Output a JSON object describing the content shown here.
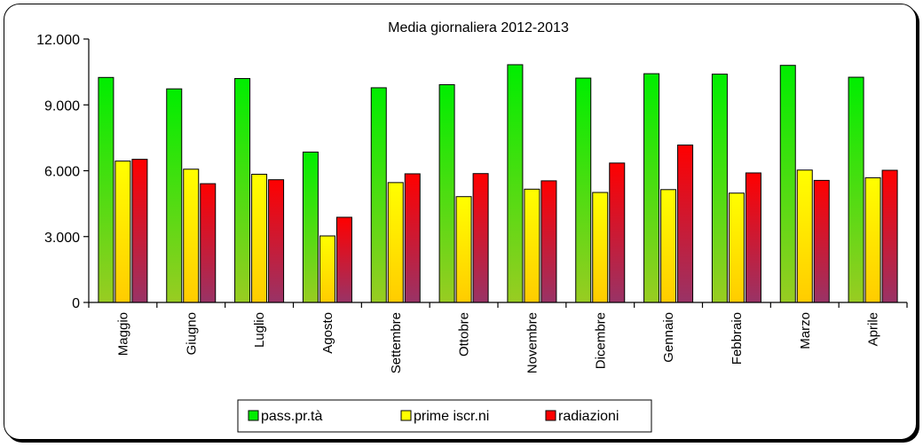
{
  "chart_data": {
    "type": "bar",
    "title": "Media giornaliera 2012-2013",
    "xlabel": "",
    "ylabel": "",
    "ylim": [
      0,
      12000
    ],
    "yticks": [
      "0",
      "3.000",
      "6.000",
      "9.000",
      "12.000"
    ],
    "ytick_values": [
      0,
      3000,
      6000,
      9000,
      12000
    ],
    "grid": false,
    "legend": "bottom-center",
    "categories": [
      "Maggio",
      "Giugno",
      "Luglio",
      "Agosto",
      "Settembre",
      "Ottobre",
      "Novembre",
      "Dicembre",
      "Gennaio",
      "Febbraio",
      "Marzo",
      "Aprile"
    ],
    "series": [
      {
        "name": "pass.pr.tà",
        "color_top": "#00ee00",
        "color_bottom": "#99cc22",
        "values": [
          10250,
          9730,
          10200,
          6850,
          9780,
          9920,
          10830,
          10220,
          10420,
          10400,
          10800,
          10260
        ]
      },
      {
        "name": "prime iscr.ni",
        "color_top": "#ffff00",
        "color_bottom": "#ffcc00",
        "values": [
          6440,
          6070,
          5840,
          3030,
          5460,
          4820,
          5160,
          5010,
          5140,
          4980,
          6030,
          5680
        ]
      },
      {
        "name": "radiazioni",
        "color_top": "#ff0000",
        "color_bottom": "#993366",
        "values": [
          6520,
          5410,
          5590,
          3880,
          5860,
          5870,
          5540,
          6350,
          7170,
          5900,
          5560,
          6020
        ]
      }
    ]
  }
}
